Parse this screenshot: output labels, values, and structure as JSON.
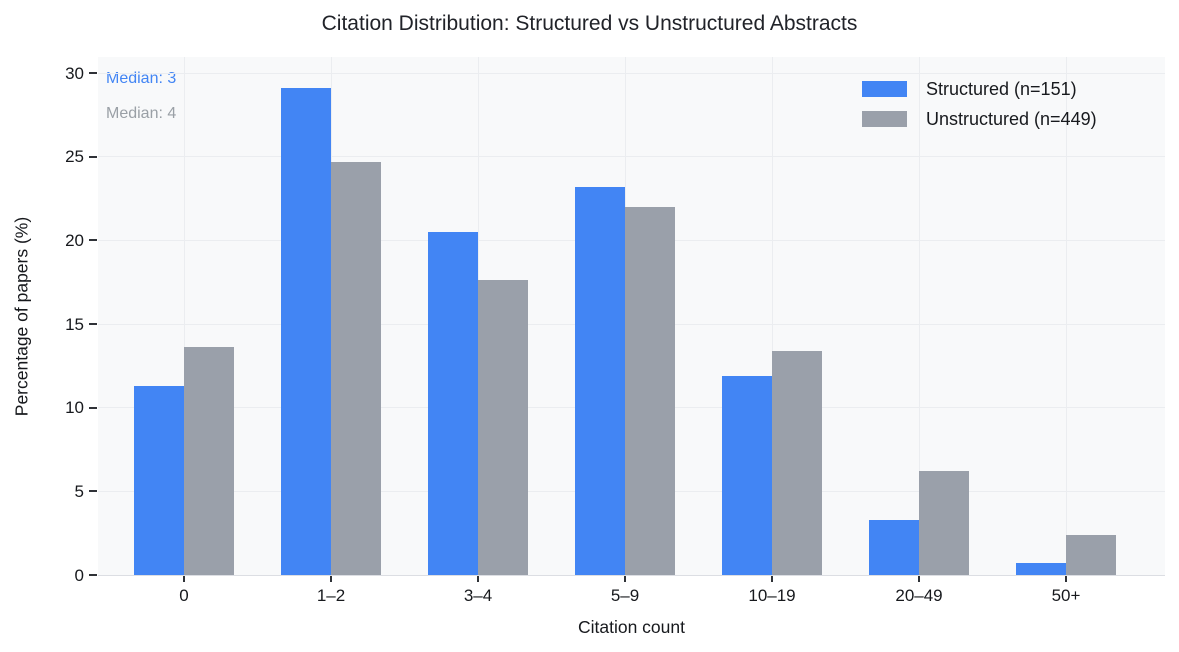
{
  "chart_data": {
    "type": "bar",
    "title": "Citation Distribution: Structured vs Unstructured Abstracts",
    "xlabel": "Citation count",
    "ylabel": "Percentage of papers (%)",
    "categories": [
      "0",
      "1–2",
      "3–4",
      "5–9",
      "10–19",
      "20–49",
      "50+"
    ],
    "series": [
      {
        "name": "Structured (n=151)",
        "color": "#4285F4",
        "values": [
          11.3,
          29.1,
          20.5,
          23.2,
          11.9,
          3.3,
          0.7
        ]
      },
      {
        "name": "Unstructured (n=449)",
        "color": "#9AA0AA",
        "values": [
          13.6,
          24.7,
          17.6,
          22.0,
          13.4,
          6.2,
          2.4
        ]
      }
    ],
    "ylim": [
      0,
      30
    ],
    "yticks": [
      0,
      5,
      10,
      15,
      20,
      25,
      30
    ],
    "grid": true,
    "plot_background": "#f8f9fa",
    "legend_position": "upper right",
    "annotations": [
      {
        "text": "Median: 3",
        "color": "#4285F4"
      },
      {
        "text": "Median: 4",
        "color": "#9AA0A6"
      }
    ]
  }
}
